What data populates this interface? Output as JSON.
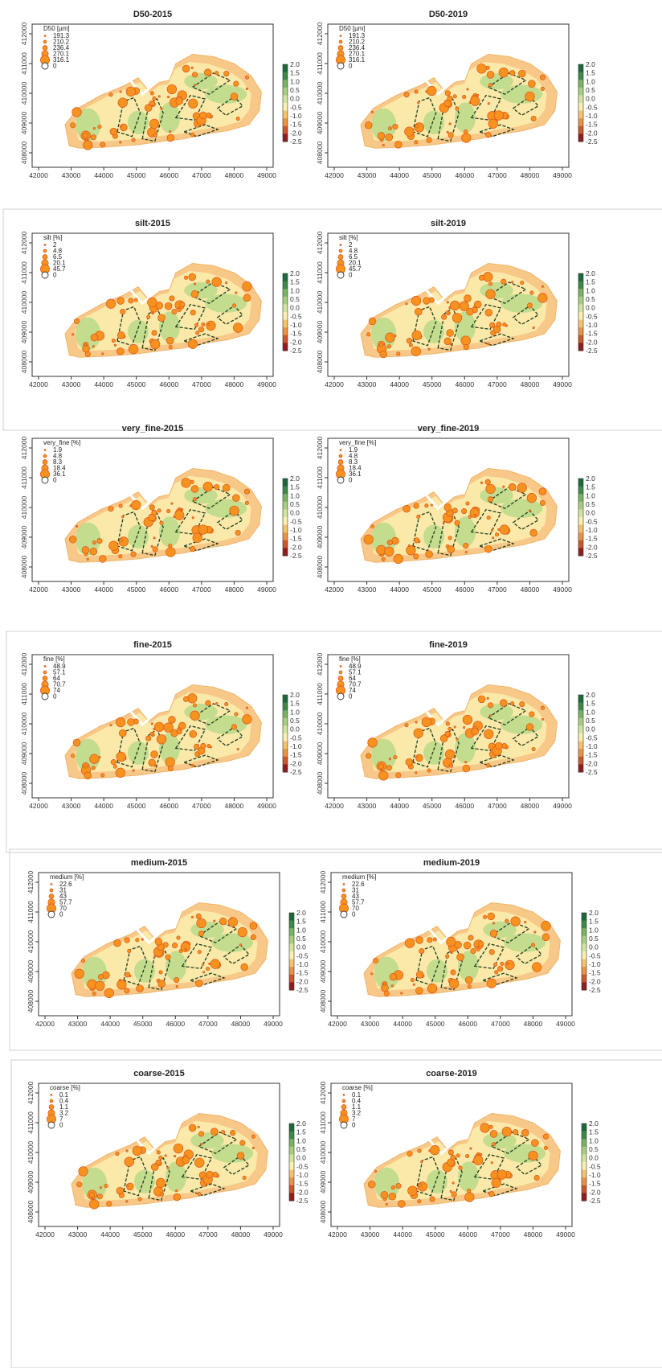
{
  "figure": {
    "x_ticks": [
      "42000",
      "43000",
      "44000",
      "45000",
      "46000",
      "47000",
      "48000",
      "49000"
    ],
    "y_ticks": [
      "408000",
      "409000",
      "410000",
      "411000",
      "412000"
    ],
    "colorbar_labels": [
      "2.0",
      "1.5",
      "1.0",
      "0.5",
      "0.0",
      "-0.5",
      "-1.0",
      "-1.5",
      "-2.0",
      "-2.5"
    ],
    "colorbar_colors": [
      "#1b6b3a",
      "#3c8a47",
      "#78b463",
      "#a8cf7f",
      "#d2e59f",
      "#fbf0b0",
      "#f5c36e",
      "#e89345",
      "#c9582b",
      "#8e1f1f"
    ],
    "zero_label": "0"
  },
  "chart_data": [
    {
      "type": "scatter",
      "title": "D50-2015",
      "legend_title": "D50 [µm]",
      "legend_values": [
        "191.3",
        "210.2",
        "236.4",
        "270.1",
        "316.1"
      ]
    },
    {
      "type": "scatter",
      "title": "D50-2019",
      "legend_title": "D50 [µm]",
      "legend_values": [
        "191.3",
        "210.2",
        "236.4",
        "270.1",
        "316.1"
      ]
    },
    {
      "type": "scatter",
      "title": "silt-2015",
      "legend_title": "silt [%]",
      "legend_values": [
        "2",
        "4.8",
        "6.5",
        "20.1",
        "45.7"
      ]
    },
    {
      "type": "scatter",
      "title": "silt-2019",
      "legend_title": "silt [%]",
      "legend_values": [
        "2",
        "4.8",
        "6.5",
        "20.1",
        "45.7"
      ]
    },
    {
      "type": "scatter",
      "title": "very_fine-2015",
      "legend_title": "very_fine [%]",
      "legend_values": [
        "1.9",
        "4.8",
        "8.3",
        "18.4",
        "36.1"
      ]
    },
    {
      "type": "scatter",
      "title": "very_fine-2019",
      "legend_title": "very_fine [%]",
      "legend_values": [
        "1.9",
        "4.8",
        "8.3",
        "18.4",
        "36.1"
      ]
    },
    {
      "type": "scatter",
      "title": "fine-2015",
      "legend_title": "fine [%]",
      "legend_values": [
        "48.9",
        "57.1",
        "64",
        "70.7",
        "74"
      ]
    },
    {
      "type": "scatter",
      "title": "fine-2019",
      "legend_title": "fine [%]",
      "legend_values": [
        "48.9",
        "57.1",
        "64",
        "70.7",
        "74"
      ]
    },
    {
      "type": "scatter",
      "title": "medium-2015",
      "legend_title": "medium [%]",
      "legend_values": [
        "22.6",
        "31",
        "43",
        "57.7",
        "70"
      ]
    },
    {
      "type": "scatter",
      "title": "medium-2019",
      "legend_title": "medium [%]",
      "legend_values": [
        "22.6",
        "31",
        "43",
        "57.7",
        "70"
      ]
    },
    {
      "type": "scatter",
      "title": "coarse-2015",
      "legend_title": "coarse [%]",
      "legend_values": [
        "0.1",
        "0.4",
        "1.1",
        "3.2",
        "7"
      ]
    },
    {
      "type": "scatter",
      "title": "coarse-2019",
      "legend_title": "coarse [%]",
      "legend_values": [
        "0.1",
        "0.4",
        "1.1",
        "3.2",
        "7"
      ]
    }
  ]
}
